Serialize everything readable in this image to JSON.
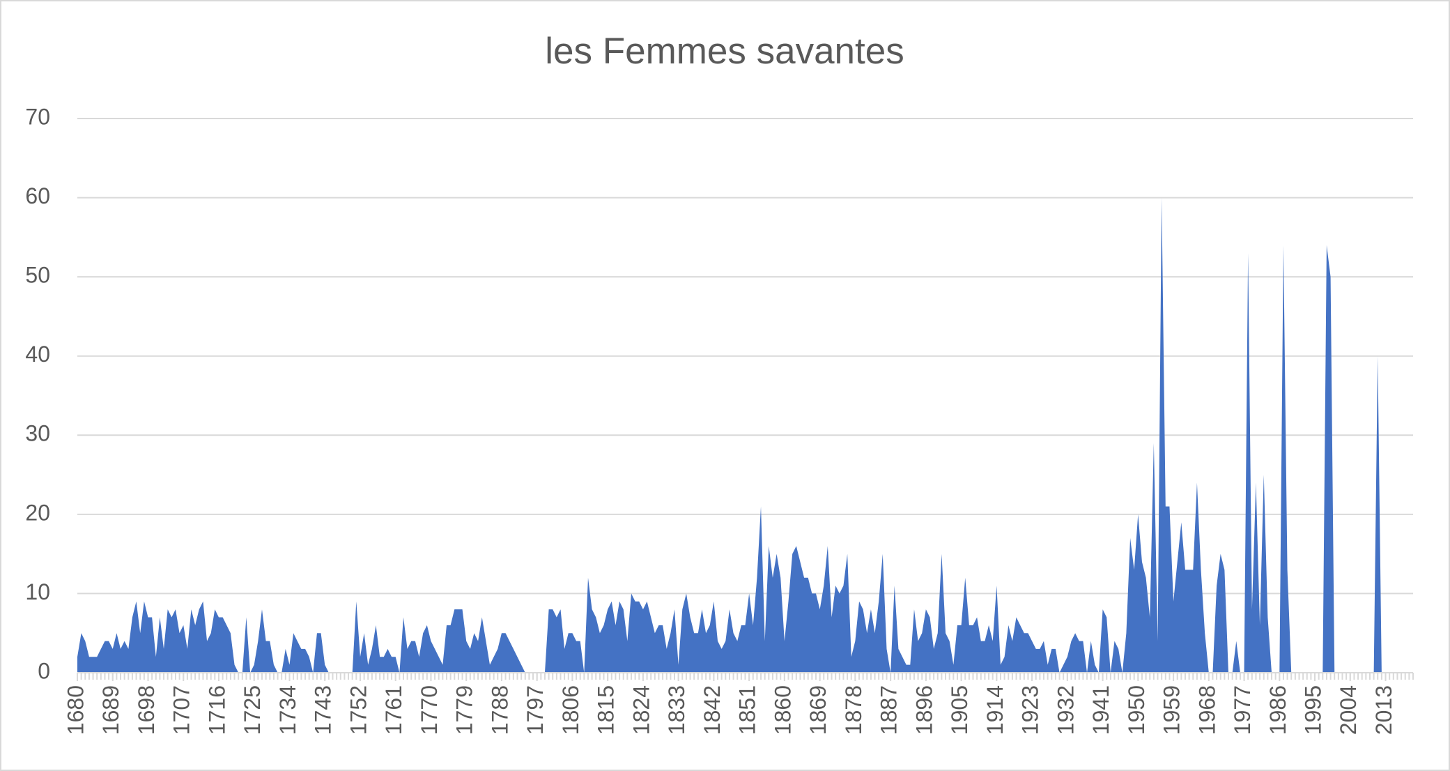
{
  "chart_data": {
    "type": "area",
    "title": "les Femmes savantes",
    "color": "#4472c4",
    "grid": true,
    "x": [
      1680,
      1681,
      1682,
      1683,
      1684,
      1685,
      1686,
      1687,
      1688,
      1689,
      1690,
      1691,
      1692,
      1693,
      1694,
      1695,
      1696,
      1697,
      1698,
      1699,
      1700,
      1701,
      1702,
      1703,
      1704,
      1705,
      1706,
      1707,
      1708,
      1709,
      1710,
      1711,
      1712,
      1713,
      1714,
      1715,
      1716,
      1717,
      1718,
      1719,
      1720,
      1721,
      1722,
      1723,
      1724,
      1725,
      1726,
      1727,
      1728,
      1729,
      1730,
      1731,
      1732,
      1733,
      1734,
      1735,
      1736,
      1737,
      1738,
      1739,
      1740,
      1741,
      1742,
      1743,
      1744,
      1745,
      1746,
      1747,
      1748,
      1749,
      1750,
      1751,
      1752,
      1753,
      1754,
      1755,
      1756,
      1757,
      1758,
      1759,
      1760,
      1761,
      1762,
      1763,
      1764,
      1765,
      1766,
      1767,
      1768,
      1769,
      1770,
      1771,
      1772,
      1773,
      1774,
      1775,
      1776,
      1777,
      1778,
      1779,
      1780,
      1781,
      1782,
      1783,
      1784,
      1785,
      1786,
      1787,
      1788,
      1789,
      1790,
      1791,
      1792,
      1793,
      1794,
      1795,
      1796,
      1797,
      1798,
      1799,
      1800,
      1801,
      1802,
      1803,
      1804,
      1805,
      1806,
      1807,
      1808,
      1809,
      1810,
      1811,
      1812,
      1813,
      1814,
      1815,
      1816,
      1817,
      1818,
      1819,
      1820,
      1821,
      1822,
      1823,
      1824,
      1825,
      1826,
      1827,
      1828,
      1829,
      1830,
      1831,
      1832,
      1833,
      1834,
      1835,
      1836,
      1837,
      1838,
      1839,
      1840,
      1841,
      1842,
      1843,
      1844,
      1845,
      1846,
      1847,
      1848,
      1849,
      1850,
      1851,
      1852,
      1853,
      1854,
      1855,
      1856,
      1857,
      1858,
      1859,
      1860,
      1861,
      1862,
      1863,
      1864,
      1865,
      1866,
      1867,
      1868,
      1869,
      1870,
      1871,
      1872,
      1873,
      1874,
      1875,
      1876,
      1877,
      1878,
      1879,
      1880,
      1881,
      1882,
      1883,
      1884,
      1885,
      1886,
      1887,
      1888,
      1889,
      1890,
      1891,
      1892,
      1893,
      1894,
      1895,
      1896,
      1897,
      1898,
      1899,
      1900,
      1901,
      1902,
      1903,
      1904,
      1905,
      1906,
      1907,
      1908,
      1909,
      1910,
      1911,
      1912,
      1913,
      1914,
      1915,
      1916,
      1917,
      1918,
      1919,
      1920,
      1921,
      1922,
      1923,
      1924,
      1925,
      1926,
      1927,
      1928,
      1929,
      1930,
      1931,
      1932,
      1933,
      1934,
      1935,
      1936,
      1937,
      1938,
      1939,
      1940,
      1941,
      1942,
      1943,
      1944,
      1945,
      1946,
      1947,
      1948,
      1949,
      1950,
      1951,
      1952,
      1953,
      1954,
      1955,
      1956,
      1957,
      1958,
      1959,
      1960,
      1961,
      1962,
      1963,
      1964,
      1965,
      1966,
      1967,
      1968,
      1969,
      1970,
      1971,
      1972,
      1973,
      1974,
      1975,
      1976,
      1977,
      1978,
      1979,
      1980,
      1981,
      1982,
      1983,
      1984,
      1985,
      1986,
      1987,
      1988,
      1989,
      1990,
      1991,
      1992,
      1993,
      1994,
      1995,
      1996,
      1997,
      1998,
      1999,
      2000,
      2001,
      2002,
      2003,
      2004,
      2005,
      2006,
      2007,
      2008,
      2009,
      2010,
      2011,
      2012,
      2013,
      2014,
      2015,
      2016,
      2017,
      2018,
      2019,
      2020
    ],
    "values": [
      2,
      5,
      4,
      2,
      2,
      2,
      3,
      4,
      4,
      3,
      5,
      3,
      4,
      3,
      7,
      9,
      5,
      9,
      7,
      7,
      2,
      7,
      3,
      8,
      7,
      8,
      5,
      6,
      3,
      8,
      6,
      8,
      9,
      4,
      5,
      8,
      7,
      7,
      6,
      5,
      1,
      0,
      0,
      7,
      0,
      1,
      4,
      8,
      4,
      4,
      1,
      0,
      0,
      3,
      1,
      5,
      4,
      3,
      3,
      2,
      0,
      5,
      5,
      1,
      0,
      0,
      0,
      0,
      0,
      0,
      0,
      9,
      2,
      5,
      1,
      3,
      6,
      2,
      2,
      3,
      2,
      2,
      0,
      7,
      3,
      4,
      4,
      2,
      5,
      6,
      4,
      3,
      2,
      1,
      6,
      6,
      8,
      8,
      8,
      4,
      3,
      5,
      4,
      7,
      4,
      1,
      2,
      3,
      5,
      5,
      4,
      3,
      2,
      1,
      0,
      0,
      0,
      0,
      0,
      0,
      8,
      8,
      7,
      8,
      3,
      5,
      5,
      4,
      4,
      0,
      12,
      8,
      7,
      5,
      6,
      8,
      9,
      6,
      9,
      8,
      4,
      10,
      9,
      9,
      8,
      9,
      7,
      5,
      6,
      6,
      3,
      5,
      8,
      1,
      8,
      10,
      7,
      5,
      5,
      8,
      5,
      6,
      9,
      4,
      3,
      4,
      8,
      5,
      4,
      6,
      6,
      10,
      6,
      12,
      21,
      4,
      16,
      12,
      15,
      12,
      4,
      9,
      15,
      16,
      14,
      12,
      12,
      10,
      10,
      8,
      11,
      16,
      7,
      11,
      10,
      11,
      15,
      2,
      4,
      9,
      8,
      5,
      8,
      5,
      9,
      15,
      3,
      0,
      11,
      3,
      2,
      1,
      1,
      8,
      4,
      5,
      8,
      7,
      3,
      5,
      15,
      5,
      4,
      1,
      6,
      6,
      12,
      6,
      6,
      7,
      4,
      4,
      6,
      4,
      11,
      1,
      2,
      6,
      4,
      7,
      6,
      5,
      5,
      4,
      3,
      3,
      4,
      1,
      3,
      3,
      0,
      1,
      2,
      4,
      5,
      4,
      4,
      0,
      4,
      1,
      0,
      8,
      7,
      0,
      4,
      3,
      0,
      5,
      17,
      13,
      20,
      14,
      12,
      7,
      29,
      4,
      60,
      21,
      21,
      9,
      14,
      19,
      13,
      13,
      13,
      24,
      13,
      5,
      0,
      0,
      11,
      15,
      13,
      0,
      0,
      4,
      0,
      0,
      53,
      8,
      24,
      6,
      25,
      7,
      0,
      0,
      0,
      54,
      13,
      0,
      0,
      0,
      0,
      0,
      0,
      0,
      0,
      0,
      54,
      50,
      0,
      0,
      0,
      0,
      0,
      0,
      0,
      0,
      0,
      0,
      0,
      40,
      0,
      0,
      0,
      0,
      0,
      0,
      0,
      0,
      0
    ],
    "xlim": [
      1680,
      2020
    ],
    "xticks": [
      1680,
      1689,
      1698,
      1707,
      1716,
      1725,
      1734,
      1743,
      1752,
      1761,
      1770,
      1779,
      1788,
      1797,
      1806,
      1815,
      1824,
      1833,
      1842,
      1851,
      1860,
      1869,
      1878,
      1887,
      1896,
      1905,
      1914,
      1923,
      1932,
      1941,
      1950,
      1959,
      1968,
      1977,
      1986,
      1995,
      2004,
      2013
    ],
    "ylim": [
      0,
      70
    ],
    "yticks": [
      0,
      10,
      20,
      30,
      40,
      50,
      60,
      70
    ]
  }
}
